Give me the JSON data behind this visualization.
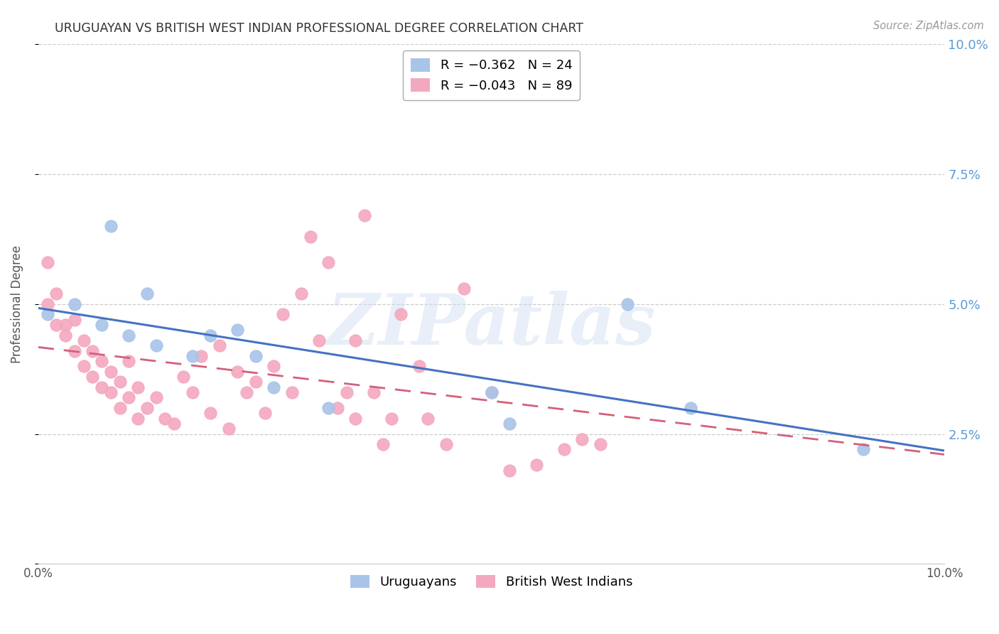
{
  "title": "URUGUAYAN VS BRITISH WEST INDIAN PROFESSIONAL DEGREE CORRELATION CHART",
  "source": "Source: ZipAtlas.com",
  "ylabel": "Professional Degree",
  "watermark": "ZIPatlas",
  "xlim": [
    0.0,
    0.1
  ],
  "ylim": [
    0.0,
    0.1
  ],
  "uruguayan_color": "#a8c4e8",
  "bwi_color": "#f4a8bf",
  "uruguayan_line_color": "#4472c4",
  "bwi_line_color": "#d4607a",
  "bwi_line_style": "--",
  "legend_r1": "R = −0.362",
  "legend_n1": "N = 24",
  "legend_r2": "R = −0.043",
  "legend_n2": "N = 89",
  "uruguayan_scatter_x": [
    0.001,
    0.004,
    0.007,
    0.008,
    0.01,
    0.012,
    0.013,
    0.017,
    0.019,
    0.022,
    0.024,
    0.026,
    0.032,
    0.05,
    0.052,
    0.065,
    0.072,
    0.091
  ],
  "uruguayan_scatter_y": [
    0.048,
    0.05,
    0.046,
    0.065,
    0.044,
    0.052,
    0.042,
    0.04,
    0.044,
    0.045,
    0.04,
    0.034,
    0.03,
    0.033,
    0.027,
    0.05,
    0.03,
    0.022
  ],
  "bwi_scatter_x": [
    0.001,
    0.001,
    0.002,
    0.002,
    0.003,
    0.003,
    0.004,
    0.004,
    0.005,
    0.005,
    0.006,
    0.006,
    0.007,
    0.007,
    0.008,
    0.008,
    0.009,
    0.009,
    0.01,
    0.01,
    0.011,
    0.011,
    0.012,
    0.013,
    0.014,
    0.015,
    0.016,
    0.017,
    0.018,
    0.019,
    0.02,
    0.021,
    0.022,
    0.023,
    0.024,
    0.025,
    0.026,
    0.027,
    0.028,
    0.029,
    0.03,
    0.031,
    0.032,
    0.033,
    0.034,
    0.035,
    0.036,
    0.037,
    0.038,
    0.039,
    0.04,
    0.042,
    0.043,
    0.045,
    0.047,
    0.05,
    0.052,
    0.055,
    0.058,
    0.06,
    0.062,
    0.035
  ],
  "bwi_scatter_y": [
    0.05,
    0.058,
    0.046,
    0.052,
    0.046,
    0.044,
    0.041,
    0.047,
    0.043,
    0.038,
    0.041,
    0.036,
    0.039,
    0.034,
    0.037,
    0.033,
    0.035,
    0.03,
    0.039,
    0.032,
    0.034,
    0.028,
    0.03,
    0.032,
    0.028,
    0.027,
    0.036,
    0.033,
    0.04,
    0.029,
    0.042,
    0.026,
    0.037,
    0.033,
    0.035,
    0.029,
    0.038,
    0.048,
    0.033,
    0.052,
    0.063,
    0.043,
    0.058,
    0.03,
    0.033,
    0.028,
    0.067,
    0.033,
    0.023,
    0.028,
    0.048,
    0.038,
    0.028,
    0.023,
    0.053,
    0.033,
    0.018,
    0.019,
    0.022,
    0.024,
    0.023,
    0.043
  ],
  "background_color": "#ffffff",
  "grid_color": "#cccccc",
  "title_color": "#333333",
  "axis_label_color": "#555555",
  "right_tick_color": "#5b9bd5",
  "bottom_tick_color": "#555555"
}
